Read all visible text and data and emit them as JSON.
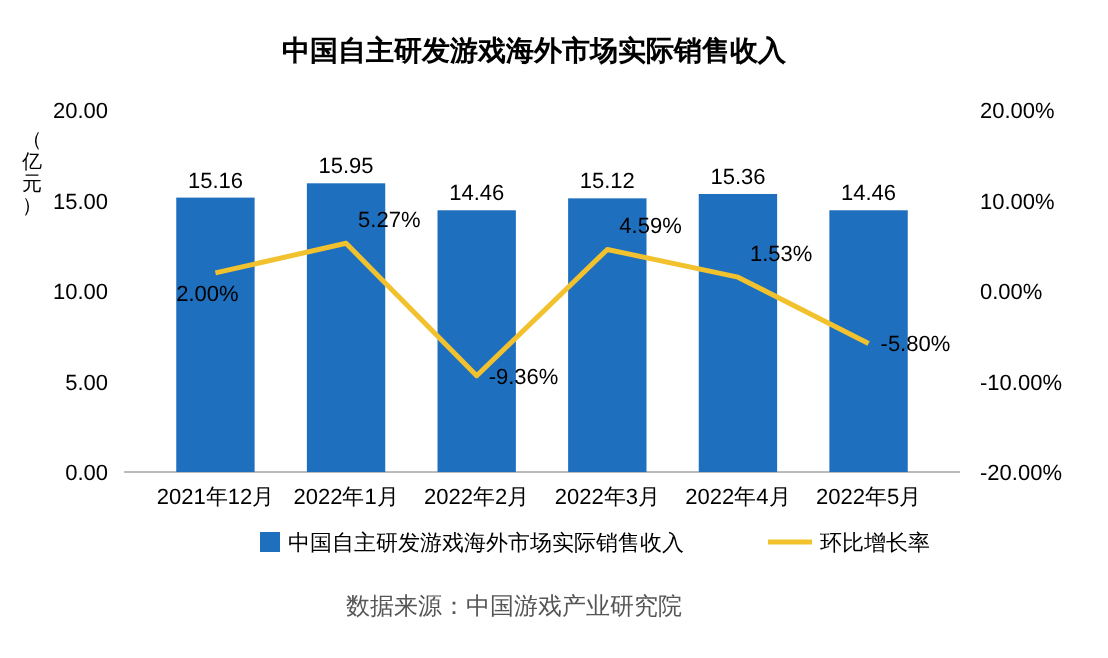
{
  "chart_data": {
    "type": "bar",
    "title": "中国自主研发游戏海外市场实际销售收入",
    "ylabel": "（亿元）",
    "categories": [
      "2021年12月",
      "2022年1月",
      "2022年2月",
      "2022年3月",
      "2022年4月",
      "2022年5月"
    ],
    "series": [
      {
        "name": "中国自主研发游戏海外市场实际销售收入",
        "color": "#1f6fbf",
        "values": [
          15.16,
          15.95,
          14.46,
          15.12,
          15.36,
          14.46
        ],
        "value_labels": [
          "15.16",
          "15.95",
          "14.46",
          "15.12",
          "15.36",
          "14.46"
        ]
      },
      {
        "name": "环比增长率",
        "type": "line",
        "axis": "y2",
        "color": "#f2c12e",
        "values": [
          2.0,
          5.27,
          -9.36,
          4.59,
          1.53,
          -5.8
        ],
        "value_labels": [
          "2.00%",
          "5.27%",
          "-9.36%",
          "4.59%",
          "1.53%",
          "-5.80%"
        ]
      }
    ],
    "ylim": [
      0,
      20
    ],
    "yticks": [
      {
        "value": 0,
        "label": "0.00"
      },
      {
        "value": 5,
        "label": "5.00"
      },
      {
        "value": 10,
        "label": "10.00"
      },
      {
        "value": 15,
        "label": "15.00"
      },
      {
        "value": 20,
        "label": "20.00"
      }
    ],
    "y2lim": [
      -20,
      20
    ],
    "y2ticks": [
      {
        "value": -20,
        "label": "-20.00%"
      },
      {
        "value": -10,
        "label": "-10.00%"
      },
      {
        "value": 0,
        "label": "0.00%"
      },
      {
        "value": 10,
        "label": "10.00%"
      },
      {
        "value": 20,
        "label": "20.00%"
      }
    ],
    "legend": "bottom",
    "annotations": [
      "数据来源：中国游戏产业研究院"
    ]
  }
}
